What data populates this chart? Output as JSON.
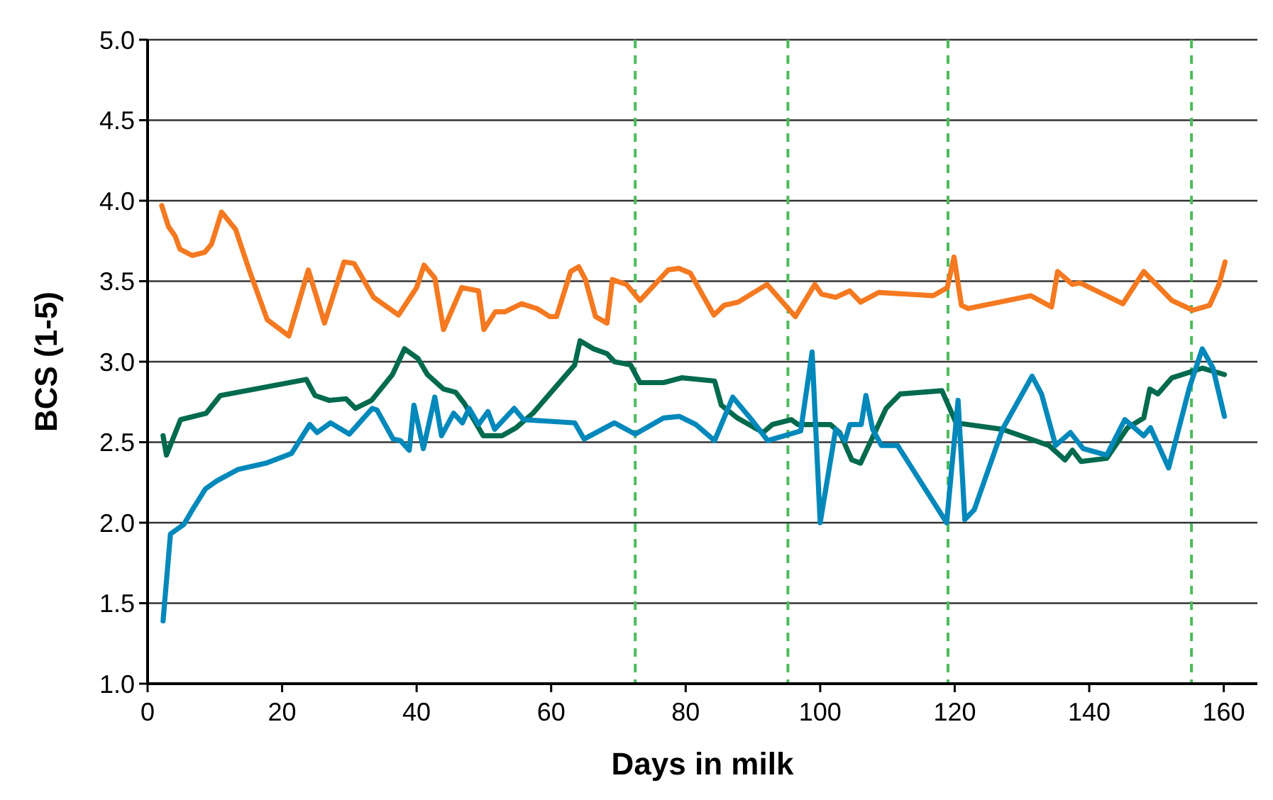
{
  "chart_data": {
    "type": "line",
    "xlabel": "Days in milk",
    "ylabel": "BCS (1-5)",
    "xlim": [
      0,
      165
    ],
    "xticks": [
      0,
      20,
      40,
      60,
      80,
      100,
      120,
      140,
      160
    ],
    "ylim": [
      1,
      5
    ],
    "yticks": [
      {
        "value": 1,
        "label": "1.0"
      },
      {
        "value": 1.5,
        "label": "1.5"
      },
      {
        "value": 2,
        "label": "2.0"
      },
      {
        "value": 2.5,
        "label": "2.5"
      },
      {
        "value": 3,
        "label": "3.0"
      },
      {
        "value": 3.5,
        "label": "3.5"
      },
      {
        "value": 4,
        "label": "4.0"
      },
      {
        "value": 4.5,
        "label": "4.5"
      },
      {
        "value": 5,
        "label": "5.0"
      }
    ],
    "grid": "y",
    "marker": "none",
    "line_style": "solid",
    "series": [
      {
        "color": "#f47920",
        "x": [
          2.1,
          3.1,
          4.1,
          4.8,
          6.6,
          8.5,
          9.5,
          11,
          13.1,
          15.1,
          17.8,
          21,
          23.9,
          26.3,
          29.2,
          30.7,
          33.6,
          37.3,
          40,
          41.1,
          42.7,
          44,
          46.7,
          49.2,
          50,
          51.7,
          53.1,
          55.6,
          57.9,
          59.8,
          60.8,
          62.9,
          64.1,
          65.1,
          66.6,
          68.3,
          69.1,
          71.2,
          73.2,
          77.4,
          79,
          80.7,
          84.2,
          85.7,
          87.8,
          92.1,
          96.3,
          99.2,
          100.2,
          102.3,
          104.4,
          106,
          108.7,
          116.8,
          118.9,
          119.9,
          121,
          122,
          131.3,
          134.4,
          135.3,
          137.5,
          138.6,
          145,
          148.1,
          152.3,
          155.4,
          157.9,
          159.3,
          160.2
        ],
        "values": [
          3.97,
          3.84,
          3.78,
          3.7,
          3.66,
          3.68,
          3.73,
          3.93,
          3.82,
          3.57,
          3.26,
          3.16,
          3.57,
          3.24,
          3.62,
          3.61,
          3.4,
          3.29,
          3.46,
          3.6,
          3.52,
          3.2,
          3.46,
          3.44,
          3.2,
          3.31,
          3.31,
          3.36,
          3.33,
          3.28,
          3.28,
          3.56,
          3.59,
          3.51,
          3.28,
          3.24,
          3.51,
          3.48,
          3.38,
          3.57,
          3.58,
          3.55,
          3.29,
          3.35,
          3.37,
          3.48,
          3.28,
          3.48,
          3.42,
          3.4,
          3.44,
          3.37,
          3.43,
          3.41,
          3.46,
          3.65,
          3.35,
          3.33,
          3.41,
          3.34,
          3.56,
          3.48,
          3.49,
          3.36,
          3.56,
          3.38,
          3.32,
          3.35,
          3.48,
          3.62
        ]
      },
      {
        "color": "#006a4e",
        "x": [
          2.3,
          2.8,
          4.9,
          8.7,
          10.8,
          23.6,
          24.9,
          27,
          29.5,
          30.9,
          33.3,
          36.4,
          38.2,
          40.2,
          41.6,
          44,
          45.8,
          47.1,
          49.9,
          52.7,
          54.8,
          57.3,
          60.4,
          63.5,
          64.3,
          66.3,
          68.3,
          69.4,
          71.8,
          73.2,
          76.7,
          79.4,
          84.3,
          85.3,
          87.7,
          91.5,
          92.9,
          95.7,
          96.7,
          101.5,
          102.9,
          104.7,
          106,
          109.8,
          111.9,
          118.1,
          120.2,
          121.9,
          127.1,
          134,
          136.4,
          137.5,
          138.8,
          142.6,
          145.7,
          148.1,
          149,
          150.2,
          152.3,
          156.8,
          160.1
        ],
        "values": [
          2.54,
          2.42,
          2.64,
          2.68,
          2.79,
          2.89,
          2.79,
          2.76,
          2.77,
          2.71,
          2.76,
          2.92,
          3.08,
          3.02,
          2.92,
          2.83,
          2.81,
          2.74,
          2.54,
          2.54,
          2.59,
          2.68,
          2.83,
          2.98,
          3.13,
          3.08,
          3.05,
          3,
          2.98,
          2.87,
          2.87,
          2.9,
          2.88,
          2.73,
          2.65,
          2.56,
          2.61,
          2.64,
          2.61,
          2.61,
          2.56,
          2.39,
          2.37,
          2.71,
          2.8,
          2.82,
          2.62,
          2.61,
          2.58,
          2.48,
          2.39,
          2.45,
          2.38,
          2.4,
          2.59,
          2.65,
          2.83,
          2.8,
          2.9,
          2.96,
          2.92
        ]
      },
      {
        "color": "#0088bb",
        "x": [
          2.3,
          3.4,
          5.4,
          6.8,
          8.6,
          10.3,
          13.4,
          17.6,
          21.4,
          24.1,
          25.2,
          27.2,
          30,
          33.4,
          34.1,
          36.5,
          37.6,
          38.9,
          39.6,
          41,
          42.7,
          43.7,
          45.5,
          46.8,
          47.8,
          49.2,
          50.6,
          51.6,
          54.5,
          55.9,
          63.5,
          64.9,
          69.4,
          72.5,
          76.7,
          79.1,
          81.5,
          84.3,
          87,
          89.8,
          92.2,
          97.1,
          98.8,
          100,
          102.3,
          103.7,
          104.4,
          106.1,
          106.8,
          107.8,
          109.1,
          111.5,
          118.8,
          120.5,
          121.5,
          122.9,
          127.1,
          131.5,
          132.9,
          135,
          137.2,
          139.1,
          142.6,
          145.3,
          148.1,
          149.1,
          151.8,
          154.9,
          156.8,
          158.4,
          160.1
        ],
        "values": [
          1.39,
          1.93,
          1.99,
          2.09,
          2.21,
          2.26,
          2.33,
          2.37,
          2.43,
          2.61,
          2.56,
          2.62,
          2.55,
          2.71,
          2.7,
          2.52,
          2.51,
          2.45,
          2.73,
          2.46,
          2.78,
          2.54,
          2.68,
          2.62,
          2.71,
          2.61,
          2.69,
          2.58,
          2.71,
          2.64,
          2.62,
          2.52,
          2.62,
          2.55,
          2.65,
          2.66,
          2.61,
          2.51,
          2.78,
          2.64,
          2.51,
          2.57,
          3.06,
          2,
          2.58,
          2.51,
          2.61,
          2.61,
          2.79,
          2.58,
          2.48,
          2.48,
          2,
          2.76,
          2.02,
          2.08,
          2.58,
          2.91,
          2.8,
          2.48,
          2.56,
          2.46,
          2.42,
          2.64,
          2.54,
          2.59,
          2.34,
          2.84,
          3.08,
          2.96,
          2.66
        ]
      }
    ],
    "ref_lines": [
      {
        "axis": "x",
        "value": 72.5,
        "color": "#4cbb5c",
        "line_style": "dashed"
      },
      {
        "axis": "x",
        "value": 95.2,
        "color": "#4cbb5c",
        "line_style": "dashed"
      },
      {
        "axis": "x",
        "value": 119,
        "color": "#4cbb5c",
        "line_style": "dashed"
      },
      {
        "axis": "x",
        "value": 155.2,
        "color": "#4cbb5c",
        "line_style": "dashed"
      }
    ]
  }
}
